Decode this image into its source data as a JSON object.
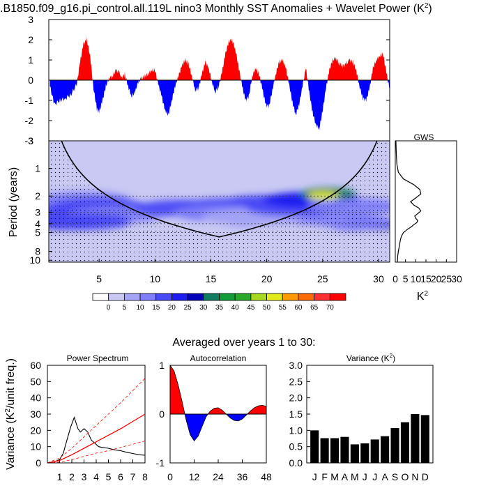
{
  "figure": {
    "title": ".B1850.f09_g16.pi_control.all.119L nino3 Monthly SST Anomalies + Wavelet Power (K",
    "title_sup": "2",
    "title_close": ")"
  },
  "chart_data": [
    {
      "id": "anomaly",
      "type": "area",
      "title": "",
      "xlabel": "",
      "ylabel": "",
      "xlim": [
        0.5,
        31
      ],
      "ylim": [
        -3,
        3
      ],
      "yticks": [
        -3,
        -2,
        -1,
        0,
        1,
        2,
        3
      ],
      "positive_color": "#ff0000",
      "negative_color": "#0000ff",
      "x": [
        0.6,
        1.0,
        1.5,
        2.0,
        2.5,
        3.0,
        3.3,
        3.6,
        3.9,
        4.2,
        4.5,
        4.8,
        5.0,
        5.3,
        5.6,
        5.9,
        6.2,
        6.5,
        6.8,
        7.0,
        7.3,
        7.6,
        7.9,
        8.2,
        8.5,
        8.8,
        9.1,
        9.4,
        9.7,
        10.0,
        10.3,
        10.6,
        10.9,
        11.2,
        11.5,
        11.8,
        12.1,
        12.4,
        12.7,
        13.0,
        13.3,
        13.6,
        13.9,
        14.2,
        14.5,
        14.8,
        15.1,
        15.4,
        15.7,
        16.0,
        16.3,
        16.6,
        16.9,
        17.2,
        17.5,
        17.8,
        18.1,
        18.4,
        18.7,
        19.0,
        19.3,
        19.6,
        19.9,
        20.2,
        20.5,
        20.8,
        21.1,
        21.4,
        21.7,
        22.0,
        22.3,
        22.6,
        22.9,
        23.2,
        23.5,
        23.8,
        24.1,
        24.4,
        24.7,
        25.0,
        25.3,
        25.6,
        25.9,
        26.2,
        26.5,
        26.8,
        27.1,
        27.4,
        27.7,
        28.0,
        28.3,
        28.6,
        28.9,
        29.2,
        29.5,
        29.8,
        30.1,
        30.4,
        30.7,
        31.0
      ],
      "y": [
        -0.3,
        -1.2,
        -1.0,
        -0.9,
        -0.7,
        -0.2,
        0.9,
        1.8,
        2.0,
        1.2,
        -0.4,
        -1.4,
        -1.6,
        -1.0,
        -0.3,
        0.1,
        0.2,
        0.5,
        0.4,
        0.1,
        0.3,
        -0.3,
        -0.8,
        -0.6,
        -0.1,
        0.1,
        0.2,
        0.3,
        0.5,
        0.5,
        -0.2,
        -0.8,
        -1.5,
        -1.7,
        -1.0,
        -0.3,
        0.2,
        0.7,
        1.0,
        0.8,
        0.2,
        -0.5,
        -0.4,
        0.3,
        0.9,
        0.6,
        -0.1,
        -0.6,
        -0.3,
        0.4,
        1.3,
        1.9,
        2.0,
        1.5,
        0.6,
        -0.3,
        -1.0,
        -0.8,
        0.2,
        0.6,
        0.3,
        -0.4,
        -1.2,
        -1.3,
        -0.5,
        0.3,
        0.9,
        1.0,
        0.6,
        -0.2,
        -1.1,
        -1.7,
        -1.2,
        -0.3,
        0.6,
        -0.6,
        -1.6,
        -2.2,
        -2.4,
        -1.5,
        -0.4,
        0.5,
        1.0,
        1.1,
        0.8,
        0.7,
        0.8,
        1.0,
        0.9,
        0.5,
        -0.3,
        -0.9,
        -1.0,
        -0.4,
        0.6,
        1.0,
        1.2,
        1.3,
        0.4,
        -0.5
      ]
    },
    {
      "id": "wavelet",
      "type": "heatmap",
      "title": "",
      "xlabel": "",
      "ylabel": "Period (years)",
      "xlim": [
        0.5,
        31
      ],
      "xticks": [
        5,
        10,
        15,
        20,
        25,
        30
      ],
      "period_range": [
        0.5,
        10.5
      ],
      "period_ticks": [
        1,
        2,
        3,
        4,
        5,
        8,
        10
      ],
      "y_scale": "log",
      "colorbar_levels": [
        0,
        5,
        10,
        15,
        20,
        25,
        30,
        35,
        40,
        45,
        50,
        55,
        60,
        65,
        70
      ],
      "colorbar_colors": [
        "#ffffff",
        "#c9c9f3",
        "#a4a4f6",
        "#7f7ff9",
        "#4a4af7",
        "#1d1df0",
        "#0000b8",
        "#107c5f",
        "#139a39",
        "#2aa82a",
        "#a5d81e",
        "#e2ea17",
        "#ff9b00",
        "#fb6b00",
        "#ff3030",
        "#ff0000"
      ],
      "blobs": [
        {
          "x": 3.5,
          "p": 2.2,
          "level": 3
        },
        {
          "x": 5.0,
          "p": 2.6,
          "level": 4
        },
        {
          "x": 3.0,
          "p": 3.0,
          "level": 4
        },
        {
          "x": 6.5,
          "p": 3.2,
          "level": 3
        },
        {
          "x": 2.0,
          "p": 4.0,
          "level": 6
        },
        {
          "x": 3.5,
          "p": 3.8,
          "level": 4
        },
        {
          "x": 12.5,
          "p": 2.7,
          "level": 4
        },
        {
          "x": 16.5,
          "p": 2.6,
          "level": 4
        },
        {
          "x": 20.0,
          "p": 2.4,
          "level": 4
        },
        {
          "x": 16.0,
          "p": 3.1,
          "level": 3
        },
        {
          "x": 18.5,
          "p": 3.4,
          "level": 2
        },
        {
          "x": 20.5,
          "p": 3.8,
          "level": 2
        },
        {
          "x": 22.5,
          "p": 2.7,
          "level": 4
        },
        {
          "x": 24.0,
          "p": 2.2,
          "level": 5
        },
        {
          "x": 25.5,
          "p": 1.9,
          "level": 7
        },
        {
          "x": 25.2,
          "p": 2.0,
          "level": 10
        },
        {
          "x": 25.0,
          "p": 2.0,
          "level": 11
        },
        {
          "x": 28.0,
          "p": 2.6,
          "level": 3
        },
        {
          "x": 29.5,
          "p": 4.0,
          "level": 6
        },
        {
          "x": 27.0,
          "p": 3.9,
          "level": 3
        },
        {
          "x": 20.5,
          "p": 7.0,
          "level": 1
        },
        {
          "x": 22.0,
          "p": 5.0,
          "level": 1
        }
      ]
    },
    {
      "id": "gws",
      "type": "line",
      "title": "GWS",
      "xlabel": "K",
      "xlabel_sup": "2",
      "xlim": [
        0,
        30
      ],
      "xticks": [
        0,
        5,
        10,
        15,
        20,
        25,
        30
      ],
      "period": [
        0.5,
        0.7,
        0.9,
        1.1,
        1.3,
        1.5,
        1.7,
        1.9,
        2.1,
        2.3,
        2.5,
        2.7,
        2.9,
        3.1,
        3.3,
        3.5,
        3.7,
        3.9,
        4.1,
        4.3,
        4.6,
        5.0,
        5.5,
        6.0,
        7.0,
        8.0,
        9.0,
        10.5
      ],
      "power": [
        0.3,
        0.5,
        0.8,
        1.5,
        4.0,
        9.0,
        12.0,
        12.5,
        10.0,
        7.5,
        9.0,
        11.5,
        12.5,
        11.0,
        9.5,
        10.0,
        11.0,
        10.5,
        9.0,
        8.0,
        6.0,
        4.0,
        3.0,
        2.5,
        2.0,
        1.5,
        1.2,
        1.0
      ]
    },
    {
      "id": "colorbar",
      "type": "table",
      "labels": [
        "0",
        "5",
        "10",
        "15",
        "20",
        "25",
        "30",
        "35",
        "40",
        "45",
        "50",
        "55",
        "60",
        "65",
        "70"
      ]
    },
    {
      "id": "spectrum",
      "type": "line",
      "title": "Power Spectrum",
      "xlabel": "",
      "ylabel": "Variance (K",
      "ylabel_sup": "2",
      "ylabel_tail": "/unit freq.)",
      "xlim": [
        0,
        8
      ],
      "ylim": [
        0,
        60
      ],
      "xticks": [
        1,
        2,
        3,
        4,
        5,
        6,
        7,
        8
      ],
      "yticks": [
        0,
        10,
        20,
        30,
        40,
        50,
        60
      ],
      "series": [
        {
          "color": "#000000",
          "dash": "",
          "x": [
            0,
            0.5,
            1.0,
            1.3,
            1.6,
            1.9,
            2.2,
            2.5,
            2.7,
            3.0,
            3.3,
            3.6,
            3.9,
            4.2,
            4.5,
            5.0,
            5.5,
            6.0,
            6.5,
            7.0,
            7.5,
            8.0
          ],
          "y": [
            0,
            0.5,
            2,
            6,
            14,
            22,
            28,
            21,
            19,
            21,
            19,
            14,
            12,
            10,
            9.5,
            9,
            8,
            7.5,
            6.5,
            5.8,
            5,
            4.7
          ]
        },
        {
          "color": "#ff0000",
          "dash": "",
          "x": [
            0,
            1,
            2,
            3,
            4,
            5,
            6,
            7,
            8
          ],
          "y": [
            0,
            1.5,
            5,
            9,
            13,
            17,
            21,
            25.5,
            30
          ]
        },
        {
          "color": "#ff0000",
          "dash": "4,3",
          "x": [
            0,
            1,
            2,
            3,
            4,
            5,
            6,
            7,
            8
          ],
          "y": [
            0,
            3,
            9,
            16,
            23,
            30,
            37,
            44.5,
            52
          ]
        },
        {
          "color": "#ff0000",
          "dash": "4,3",
          "x": [
            0,
            1,
            2,
            3,
            4,
            5,
            6,
            7,
            8
          ],
          "y": [
            0,
            0.5,
            2,
            4,
            6,
            7.5,
            9.5,
            11.5,
            13.5
          ]
        }
      ]
    },
    {
      "id": "autocorr",
      "type": "area",
      "title": "Autocorrelation",
      "xlim": [
        0,
        48
      ],
      "ylim": [
        -1,
        1
      ],
      "xticks": [
        0,
        12,
        24,
        36,
        48
      ],
      "yticks": [
        -1,
        0,
        1
      ],
      "x": [
        0,
        2,
        4,
        6,
        8,
        10,
        12,
        14,
        16,
        18,
        20,
        22,
        24,
        26,
        28,
        30,
        32,
        34,
        36,
        38,
        40,
        42,
        44,
        46,
        48
      ],
      "y": [
        1.0,
        0.88,
        0.6,
        0.25,
        -0.12,
        -0.42,
        -0.55,
        -0.45,
        -0.25,
        -0.05,
        0.06,
        0.12,
        0.13,
        0.08,
        0.0,
        -0.08,
        -0.13,
        -0.14,
        -0.1,
        -0.02,
        0.06,
        0.13,
        0.17,
        0.18,
        0.16
      ]
    },
    {
      "id": "variance",
      "type": "bar",
      "title": "Variance (K",
      "title_sup": "2",
      "title_close": ")",
      "ylim": [
        0,
        3.0
      ],
      "yticks": [
        "0.0",
        "0.5",
        "1.0",
        "1.5",
        "2.0",
        "2.5",
        "3.0"
      ],
      "categories": [
        "J",
        "F",
        "M",
        "A",
        "M",
        "J",
        "J",
        "A",
        "S",
        "O",
        "N",
        "D"
      ],
      "values": [
        1.0,
        0.76,
        0.76,
        0.8,
        0.57,
        0.6,
        0.72,
        0.82,
        1.07,
        1.25,
        1.5,
        1.47
      ]
    }
  ],
  "bottom_caption": "Averaged over years 1 to 30:"
}
